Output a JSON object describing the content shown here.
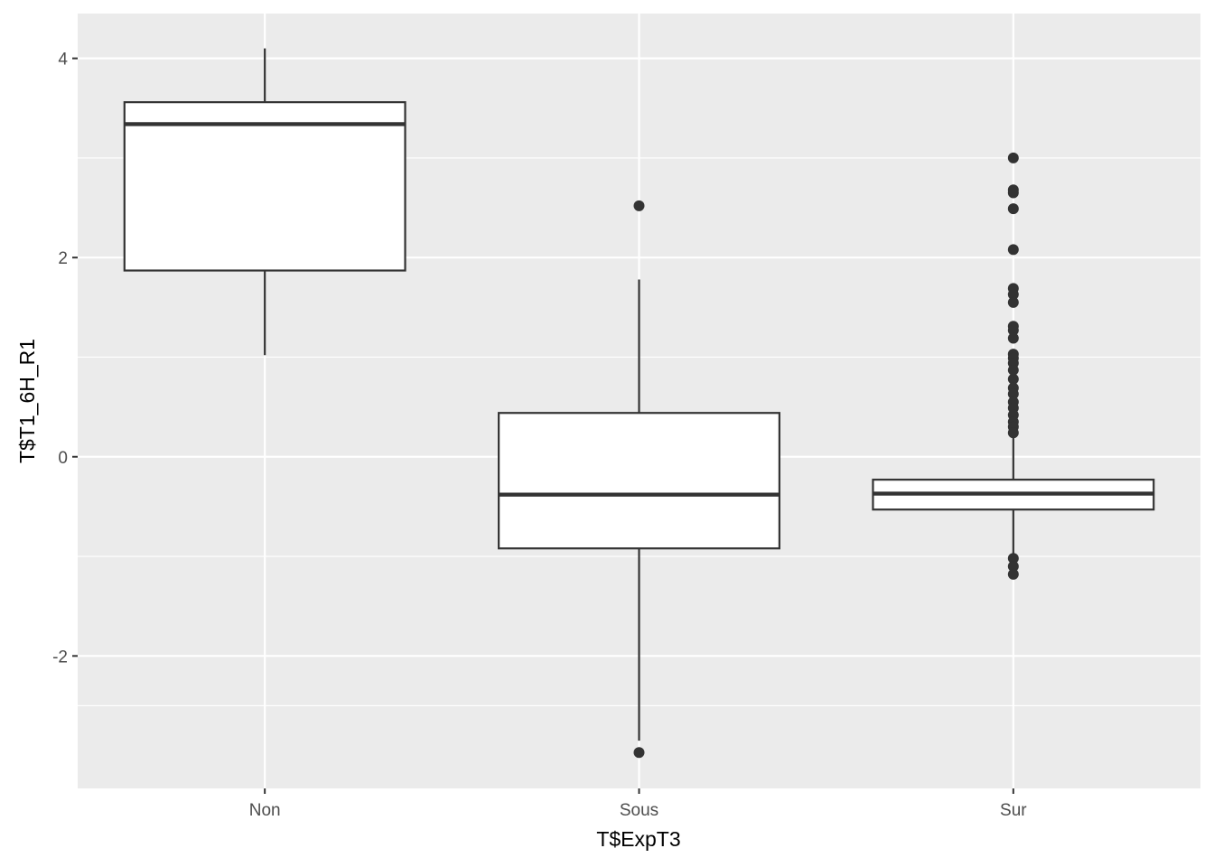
{
  "chart_data": {
    "type": "boxplot",
    "title": "",
    "xlabel": "T$ExpT3",
    "ylabel": "T$T1_6H_R1",
    "ylim": [
      -3.33,
      4.45
    ],
    "yticks": [
      -2,
      0,
      2,
      4
    ],
    "ytick_labels": [
      "-2",
      "0",
      "2",
      "4"
    ],
    "grid": true,
    "categories": [
      "Non",
      "Sous",
      "Sur"
    ],
    "boxes": [
      {
        "category": "Non",
        "whisker_low": 1.02,
        "q1": 1.87,
        "median": 3.34,
        "q3": 3.56,
        "whisker_high": 4.1,
        "outliers": []
      },
      {
        "category": "Sous",
        "whisker_low": -2.85,
        "q1": -0.92,
        "median": -0.38,
        "q3": 0.44,
        "whisker_high": 1.78,
        "outliers": [
          2.52,
          -2.97
        ]
      },
      {
        "category": "Sur",
        "whisker_low": -0.97,
        "q1": -0.53,
        "median": -0.37,
        "q3": -0.23,
        "whisker_high": 0.19,
        "outliers": [
          3.0,
          2.68,
          2.65,
          2.49,
          2.08,
          1.69,
          1.63,
          1.55,
          1.31,
          1.27,
          1.19,
          1.03,
          0.99,
          0.94,
          0.87,
          0.78,
          0.69,
          0.63,
          0.55,
          0.49,
          0.42,
          0.35,
          0.3,
          0.24,
          -1.02,
          -1.1,
          -1.18
        ]
      }
    ],
    "colors": {
      "panel": "#ebebeb",
      "grid": "#ffffff",
      "box_fill": "#ffffff",
      "box_line": "#333333",
      "outlier": "#333333"
    }
  }
}
